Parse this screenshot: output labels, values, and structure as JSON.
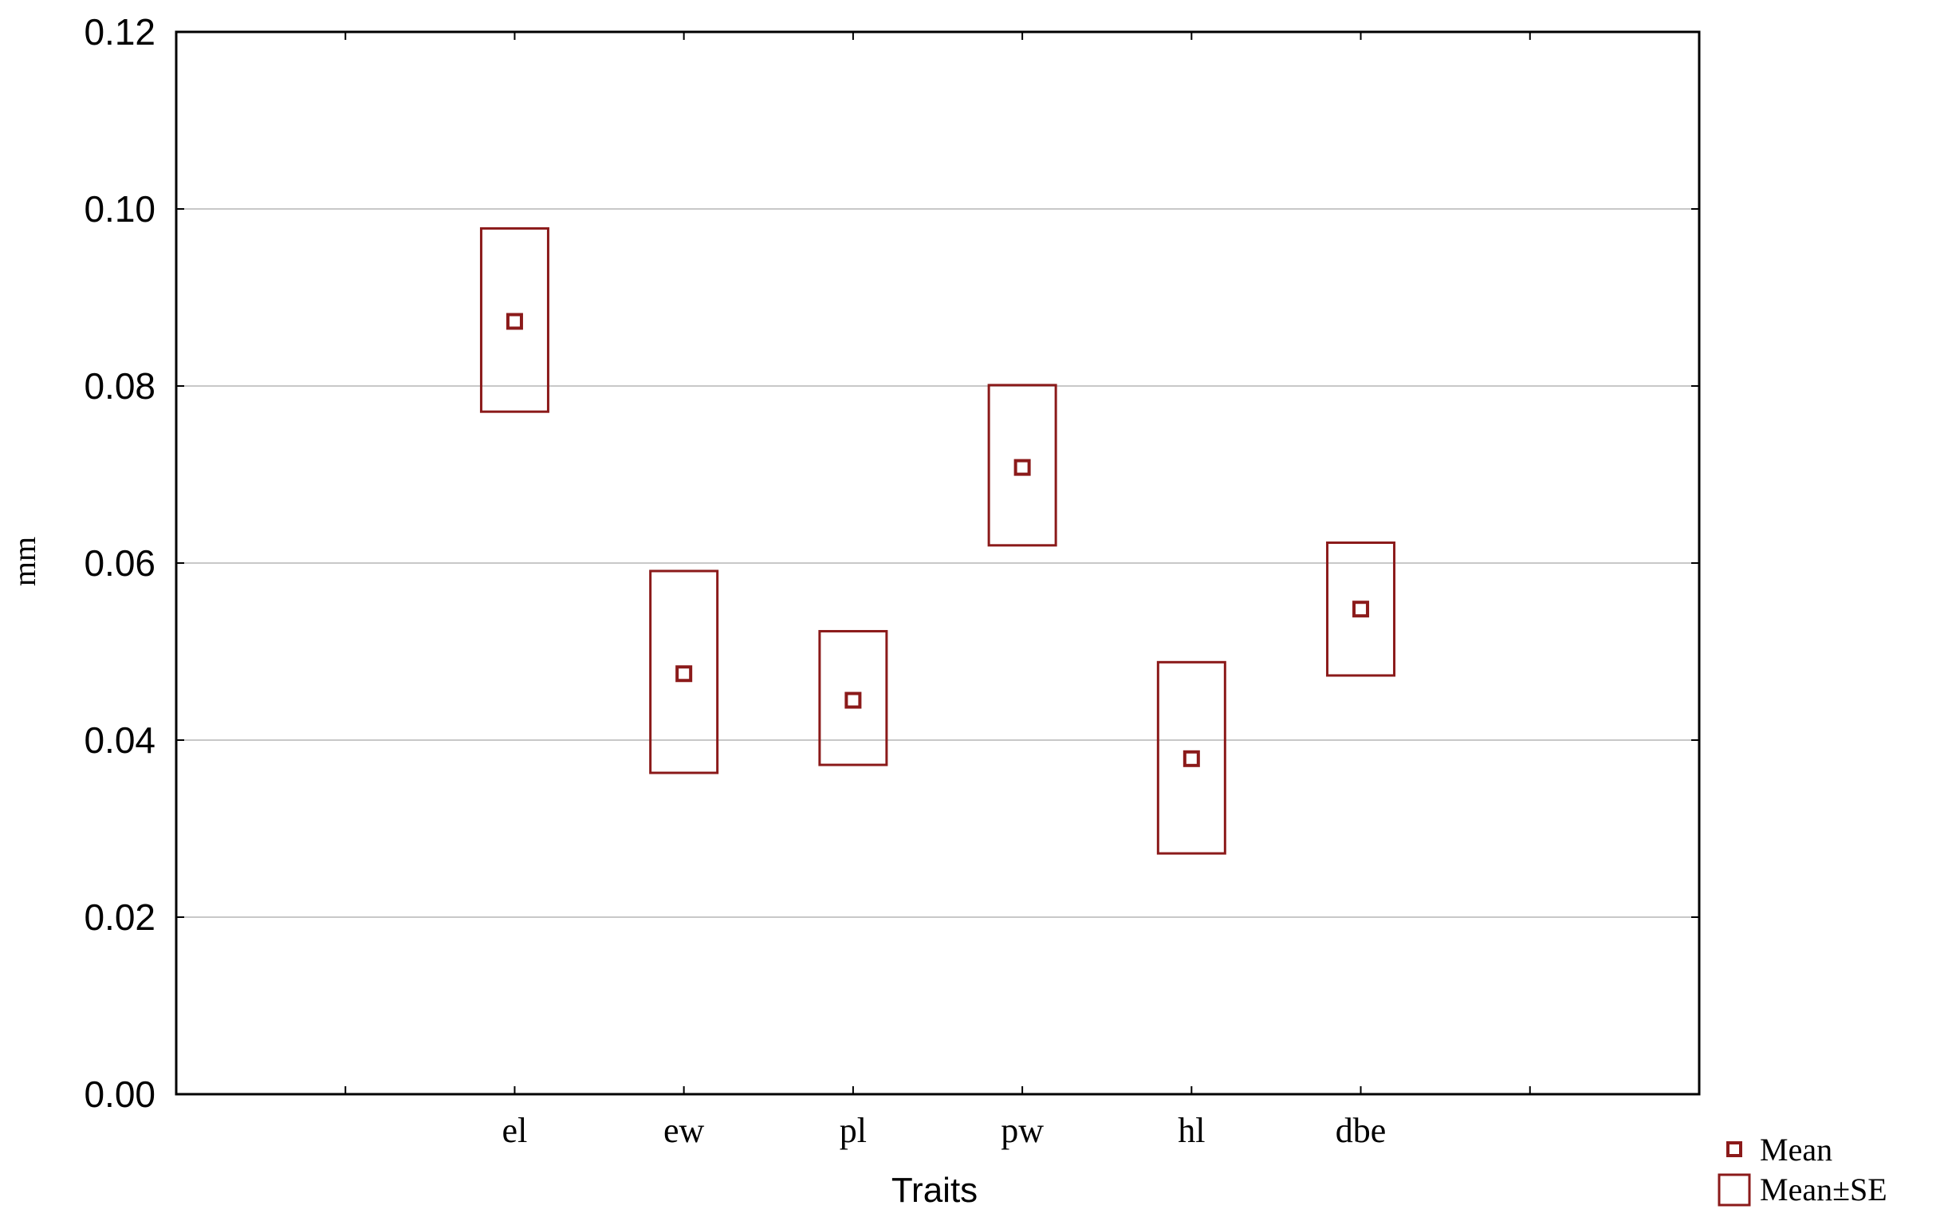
{
  "chart_data": {
    "type": "box",
    "categories": [
      "el",
      "ew",
      "pl",
      "pw",
      "hl",
      "dbe"
    ],
    "series": [
      {
        "name": "Mean",
        "values": [
          0.0873,
          0.0475,
          0.0445,
          0.0708,
          0.0379,
          0.0548
        ]
      },
      {
        "name": "Mean±SE",
        "lower": [
          0.0771,
          0.0363,
          0.0372,
          0.062,
          0.0272,
          0.0473
        ],
        "upper": [
          0.0978,
          0.0591,
          0.0523,
          0.0801,
          0.0488,
          0.0623
        ]
      }
    ],
    "xlabel": "Traits",
    "ylabel": "mm",
    "ylim": [
      0,
      0.12
    ],
    "yticks": [
      "0.00",
      "0.02",
      "0.04",
      "0.06",
      "0.08",
      "0.10",
      "0.12"
    ],
    "grid": true,
    "legend_position": "bottom-right",
    "colors": {
      "series": "#8b1a1a",
      "grid": "#c8c8c8",
      "axis": "#000000"
    }
  }
}
